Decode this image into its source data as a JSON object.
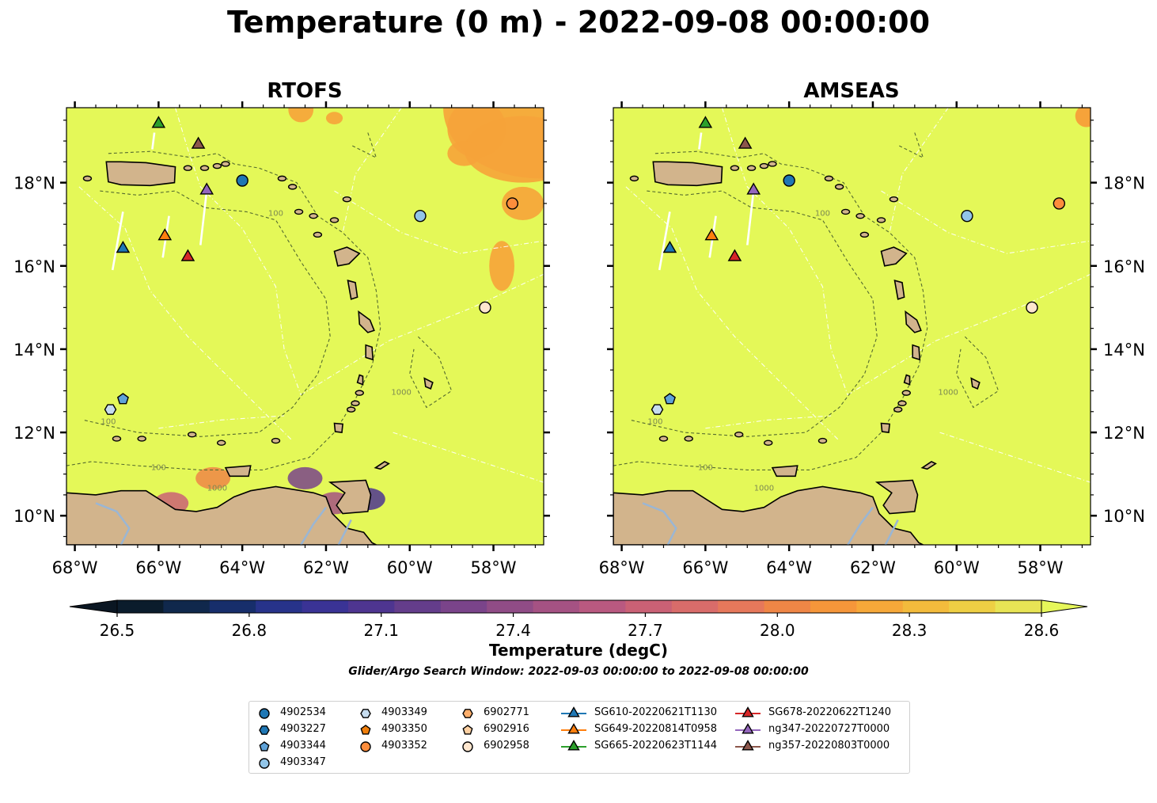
{
  "title": "Temperature (0 m) - 2022-09-08 00:00:00",
  "panels": [
    {
      "title": "RTOFS"
    },
    {
      "title": "AMSEAS"
    }
  ],
  "axes": {
    "x_ticks": [
      "68°W",
      "66°W",
      "64°W",
      "62°W",
      "60°W",
      "58°W"
    ],
    "y_ticks": [
      "18°N",
      "16°N",
      "14°N",
      "12°N",
      "10°N"
    ],
    "lon_range": [
      -68.2,
      -56.8
    ],
    "lat_range": [
      9.3,
      19.8
    ]
  },
  "bathymetry_labels": [
    "100",
    "1000"
  ],
  "colorbar": {
    "ticks": [
      "26.5",
      "26.8",
      "27.1",
      "27.4",
      "27.7",
      "28.0",
      "28.3",
      "28.6"
    ],
    "range": [
      26.5,
      28.6
    ],
    "label": "Temperature (degC)",
    "colormap": [
      "#0b1c2c",
      "#10284c",
      "#172e6b",
      "#27338a",
      "#3a3395",
      "#4e3590",
      "#643d8b",
      "#7a448a",
      "#904c86",
      "#a55283",
      "#b95980",
      "#ca6175",
      "#d96c6a",
      "#e6785b",
      "#ef8646",
      "#f5963a",
      "#f6a839",
      "#f3bb3c",
      "#eecf44",
      "#e8e455"
    ],
    "extend_colors": {
      "low": "#0a1622",
      "high": "#e6f75a"
    }
  },
  "search_window": "Glider/Argo Search Window: 2022-09-03 00:00:00 to 2022-09-08 00:00:00",
  "legend": [
    {
      "label": "4902534",
      "marker": "circle",
      "color": "#1f77b4"
    },
    {
      "label": "4903227",
      "marker": "hexagon",
      "color": "#1f77b4"
    },
    {
      "label": "4903344",
      "marker": "pentagon",
      "color": "#5fa2d8"
    },
    {
      "label": "4903347",
      "marker": "circle",
      "color": "#92c5e8"
    },
    {
      "label": "4903349",
      "marker": "hexagon",
      "color": "#c6dcef"
    },
    {
      "label": "4903350",
      "marker": "pentagon",
      "color": "#f07f0c"
    },
    {
      "label": "4903352",
      "marker": "circle",
      "color": "#fd8d3c"
    },
    {
      "label": "6902771",
      "marker": "hexagon",
      "color": "#fdae6b"
    },
    {
      "label": "6902916",
      "marker": "pentagon",
      "color": "#fdd0a2"
    },
    {
      "label": "6902958",
      "marker": "circle",
      "color": "#fee6ce"
    },
    {
      "label": "SG610-20220621T1130",
      "marker": "triangle",
      "color": "#1f77b4"
    },
    {
      "label": "SG649-20220814T0958",
      "marker": "triangle",
      "color": "#ff7f0e"
    },
    {
      "label": "SG665-20220623T1144",
      "marker": "triangle",
      "color": "#2ca02c"
    },
    {
      "label": "SG678-20220622T1240",
      "marker": "triangle",
      "color": "#d62728"
    },
    {
      "label": "ng347-20220727T0000",
      "marker": "triangle",
      "color": "#9467bd"
    },
    {
      "label": "ng357-20220803T0000",
      "marker": "triangle",
      "color": "#8c564b"
    }
  ],
  "observations": [
    {
      "id": "4902534",
      "lon": -64.0,
      "lat": 18.05
    },
    {
      "id": "4903347",
      "lon": -59.75,
      "lat": 17.2
    },
    {
      "id": "4903352",
      "lon": -57.55,
      "lat": 17.5
    },
    {
      "id": "6902958",
      "lon": -58.2,
      "lat": 15.0
    },
    {
      "id": "4903344",
      "lon": -66.85,
      "lat": 12.8
    },
    {
      "id": "4903349",
      "lon": -67.15,
      "lat": 12.55
    },
    {
      "id": "SG665-20220623T1144",
      "lon": -66.0,
      "lat": 19.45
    },
    {
      "id": "ng357-20220803T0000",
      "lon": -65.05,
      "lat": 18.95
    },
    {
      "id": "ng347-20220727T0000",
      "lon": -64.85,
      "lat": 17.85
    },
    {
      "id": "SG649-20220814T0958",
      "lon": -65.85,
      "lat": 16.75
    },
    {
      "id": "SG678-20220622T1240",
      "lon": -65.3,
      "lat": 16.25
    },
    {
      "id": "SG610-20220621T1130",
      "lon": -66.85,
      "lat": 16.45
    }
  ],
  "colors": {
    "ocean": "#e4f858",
    "land": "#d2b48c",
    "warm": "#f6a33a",
    "river": "#9ab6d4"
  }
}
